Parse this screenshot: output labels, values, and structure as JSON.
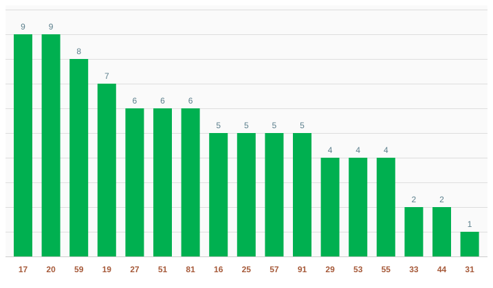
{
  "chart_data": {
    "type": "bar",
    "categories": [
      "17",
      "20",
      "59",
      "19",
      "27",
      "51",
      "81",
      "16",
      "25",
      "57",
      "91",
      "29",
      "53",
      "55",
      "33",
      "44",
      "31"
    ],
    "values": [
      9,
      9,
      8,
      7,
      6,
      6,
      6,
      5,
      5,
      5,
      5,
      4,
      4,
      4,
      2,
      2,
      1
    ],
    "title": "",
    "xlabel": "",
    "ylabel": "",
    "ylim": [
      0,
      10
    ],
    "grid": true,
    "legend": "none",
    "colors": {
      "bar": "#00b050",
      "value_label": "#5b7f8c",
      "category_label": "#a65a3a",
      "grid": "#dddddd",
      "plot_background": "#fafafa"
    }
  }
}
